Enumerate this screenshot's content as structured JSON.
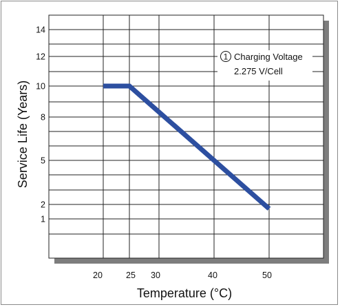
{
  "chart_data": {
    "type": "line",
    "title": "",
    "xlabel": "Temperature (°C)",
    "ylabel": "Service Life (Years)",
    "x_ticks": [
      20,
      25,
      30,
      40,
      50
    ],
    "y_ticks": [
      1,
      2,
      5,
      8,
      10,
      12,
      14
    ],
    "y_tick_labels": [
      "1",
      "2",
      "5",
      "8",
      "10",
      "12",
      "14"
    ],
    "xlim": [
      17.5,
      55
    ],
    "ylim": [
      -1.5,
      14
    ],
    "grid": true,
    "annotation": {
      "marker": "1",
      "line1": "Charging Voltage",
      "line2": "2.275 V/Cell"
    },
    "series": [
      {
        "color": "#2d4fa0",
        "points": [
          [
            20,
            10
          ],
          [
            25,
            10
          ],
          [
            50,
            1.7
          ]
        ]
      }
    ]
  },
  "colors": {
    "plot_background": "#ffffff",
    "shadow": "#7d7d7d",
    "grid": "#222222",
    "line": "#2d4fa0"
  }
}
